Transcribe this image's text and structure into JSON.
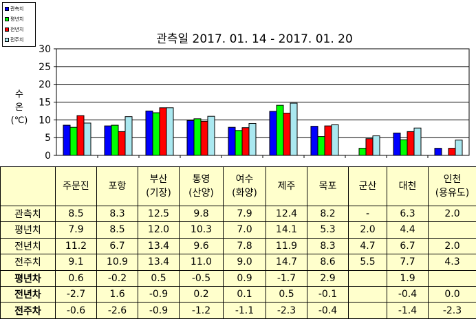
{
  "legend": [
    {
      "label": "관측치",
      "color": "#0000ff"
    },
    {
      "label": "평년치",
      "color": "#00ff00"
    },
    {
      "label": "전년치",
      "color": "#ff0000"
    },
    {
      "label": "전주치",
      "color": "#aae8f0"
    }
  ],
  "chart_data": {
    "type": "bar",
    "title": "관측일 2017. 01. 14 - 2017. 01. 20",
    "ylabel": "수온 (℃)",
    "ylim": [
      0,
      30
    ],
    "yticks": [
      "0",
      "5",
      "10",
      "15",
      "20",
      "25",
      "30"
    ],
    "grid": true,
    "categories": [
      "주문진",
      "포항",
      "부산(기장)",
      "통영(산양)",
      "여수(화양)",
      "제주",
      "목포",
      "군산",
      "대천",
      "인천(용유도)"
    ],
    "series": [
      {
        "name": "관측치",
        "color": "#0000ff",
        "values": [
          8.5,
          8.3,
          12.5,
          9.8,
          7.9,
          12.4,
          8.2,
          null,
          6.3,
          2.0
        ]
      },
      {
        "name": "평년치",
        "color": "#00ff00",
        "values": [
          7.9,
          8.5,
          12.0,
          10.3,
          7.0,
          14.1,
          5.3,
          2.0,
          4.4,
          null
        ]
      },
      {
        "name": "전년치",
        "color": "#ff0000",
        "values": [
          11.2,
          6.7,
          13.4,
          9.6,
          7.8,
          11.9,
          8.3,
          4.7,
          6.7,
          2.0
        ]
      },
      {
        "name": "전주치",
        "color": "#aae8f0",
        "values": [
          9.1,
          10.9,
          13.4,
          11.0,
          9.0,
          14.7,
          8.6,
          5.5,
          7.7,
          4.3
        ]
      }
    ]
  },
  "table": {
    "header": [
      [
        "주문진"
      ],
      [
        "포항"
      ],
      [
        "부산",
        "(기장)"
      ],
      [
        "통영",
        "(산양)"
      ],
      [
        "여수",
        "(화양)"
      ],
      [
        "제주"
      ],
      [
        "목포"
      ],
      [
        "군산"
      ],
      [
        "대천"
      ],
      [
        "인천",
        "(용유도)"
      ]
    ],
    "rows": [
      {
        "label": "관측치",
        "cells": [
          "8.5",
          "8.3",
          "12.5",
          "9.8",
          "7.9",
          "12.4",
          "8.2",
          "-",
          "6.3",
          "2.0"
        ]
      },
      {
        "label": "평년치",
        "cells": [
          "7.9",
          "8.5",
          "12.0",
          "10.3",
          "7.0",
          "14.1",
          "5.3",
          "2.0",
          "4.4",
          ""
        ]
      },
      {
        "label": "전년치",
        "cells": [
          "11.2",
          "6.7",
          "13.4",
          "9.6",
          "7.8",
          "11.9",
          "8.3",
          "4.7",
          "6.7",
          "2.0"
        ]
      },
      {
        "label": "전주치",
        "cells": [
          "9.1",
          "10.9",
          "13.4",
          "11.0",
          "9.0",
          "14.7",
          "8.6",
          "5.5",
          "7.7",
          "4.3"
        ]
      },
      {
        "label": "평년차",
        "diff": true,
        "cells": [
          "0.6",
          "-0.2",
          "0.5",
          "-0.5",
          "0.9",
          "-1.7",
          "2.9",
          "",
          "1.9",
          ""
        ]
      },
      {
        "label": "전년차",
        "diff": true,
        "cells": [
          "-2.7",
          "1.6",
          "-0.9",
          "0.2",
          "0.1",
          "0.5",
          "-0.1",
          "",
          "-0.4",
          "0.0"
        ]
      },
      {
        "label": "전주차",
        "diff": true,
        "cells": [
          "-0.6",
          "-2.6",
          "-0.9",
          "-1.2",
          "-1.1",
          "-2.3",
          "-0.4",
          "",
          "-1.4",
          "-2.3"
        ]
      }
    ]
  }
}
